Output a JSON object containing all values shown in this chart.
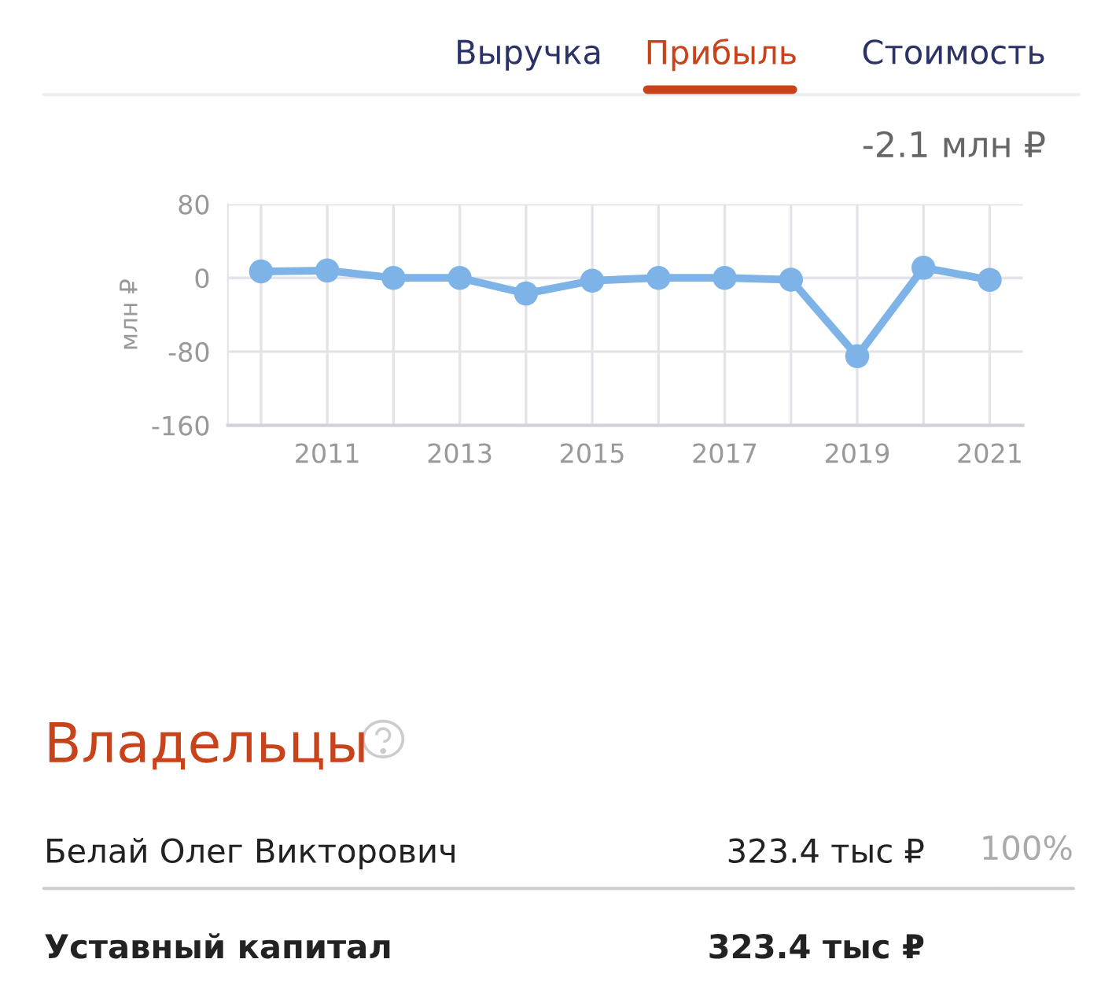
{
  "chart_data": [
    {
      "type": "line",
      "x": [
        2010,
        2011,
        2012,
        2013,
        2014,
        2015,
        2016,
        2017,
        2018,
        2019,
        2020,
        2021
      ],
      "series": [
        {
          "color": "#7eb3e8",
          "values": [
            7,
            8,
            0,
            0,
            -17,
            -3,
            0,
            0,
            -2,
            -85,
            11,
            -2.1
          ]
        }
      ],
      "ylabel": "млн ₽",
      "xlim": [
        2009.5,
        2021.5
      ],
      "ylim": [
        -160,
        80
      ],
      "yticks": [
        -160,
        -80,
        0,
        80
      ],
      "xticks": [
        {
          "value": 2010,
          "label": null
        },
        2011,
        {
          "value": 2012,
          "label": null
        },
        2013,
        {
          "value": 2014,
          "label": null
        },
        2015,
        {
          "value": 2016,
          "label": null
        },
        2017,
        {
          "value": 2018,
          "label": null
        },
        2019,
        {
          "value": 2020,
          "label": null
        },
        2021
      ],
      "grid": true,
      "marker": "circle",
      "line_style": "solid",
      "annotations": [
        "Выручка",
        "Прибыль",
        "Стоимость",
        "-2.1 млн ₽"
      ]
    },
    {
      "type": "other",
      "title": "Владельцы",
      "annotations": [
        "Белай Олег Викторович",
        "323.4 тыс ₽",
        "100%",
        "Уставный капитал",
        "323.4 тыс ₽"
      ]
    }
  ]
}
